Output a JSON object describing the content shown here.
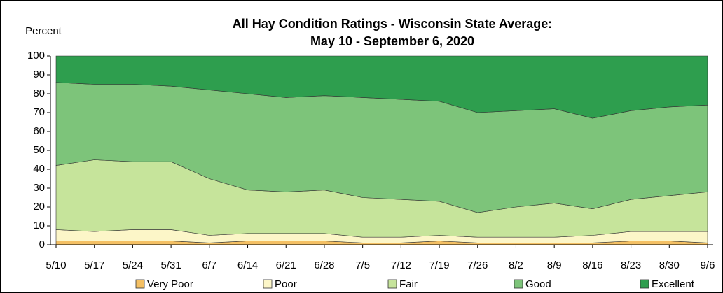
{
  "chart_data": {
    "type": "stacked_area",
    "title": "All Hay Condition Ratings - Wisconsin State Average:",
    "subtitle": "May 10 - September 6, 2020",
    "y_label": "Percent",
    "categories": [
      "5/10",
      "5/17",
      "5/24",
      "5/31",
      "6/7",
      "6/14",
      "6/21",
      "6/28",
      "7/5",
      "7/12",
      "7/19",
      "7/26",
      "8/2",
      "8/9",
      "8/16",
      "8/23",
      "8/30",
      "9/6"
    ],
    "series": [
      {
        "name": "Very Poor",
        "color": "#f4c064",
        "values": [
          2,
          2,
          2,
          2,
          1,
          2,
          2,
          2,
          1,
          1,
          2,
          1,
          1,
          1,
          1,
          2,
          2,
          1
        ]
      },
      {
        "name": "Poor",
        "color": "#fcf6c8",
        "values": [
          6,
          5,
          6,
          6,
          4,
          4,
          4,
          4,
          3,
          3,
          3,
          3,
          3,
          3,
          4,
          5,
          5,
          6
        ]
      },
      {
        "name": "Fair",
        "color": "#c6e49b",
        "values": [
          34,
          38,
          36,
          36,
          30,
          23,
          22,
          23,
          21,
          20,
          18,
          13,
          16,
          18,
          14,
          17,
          19,
          21
        ]
      },
      {
        "name": "Good",
        "color": "#7dc47a",
        "values": [
          44,
          40,
          41,
          40,
          47,
          51,
          50,
          50,
          53,
          53,
          53,
          53,
          51,
          50,
          48,
          47,
          47,
          46
        ]
      },
      {
        "name": "Excellent",
        "color": "#2e9e4e",
        "values": [
          14,
          15,
          15,
          16,
          18,
          20,
          22,
          21,
          22,
          23,
          24,
          30,
          29,
          28,
          33,
          29,
          27,
          26
        ]
      }
    ],
    "ylim": [
      0,
      100
    ],
    "yticks": [
      0,
      10,
      20,
      30,
      40,
      50,
      60,
      70,
      80,
      90,
      100
    ],
    "legend": "bottom"
  }
}
